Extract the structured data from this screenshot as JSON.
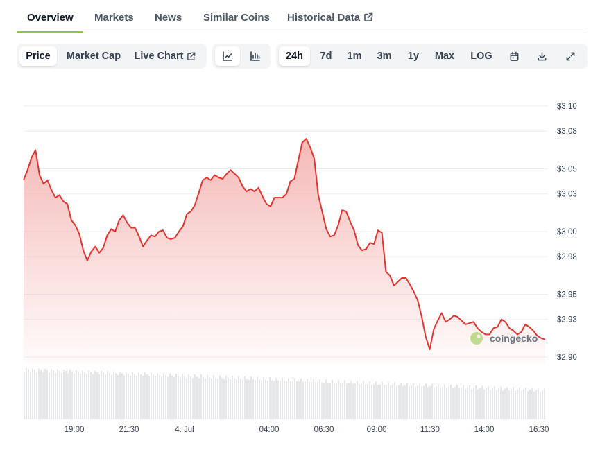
{
  "nav": {
    "tabs": [
      {
        "label": "Overview",
        "active": true
      },
      {
        "label": "Markets"
      },
      {
        "label": "News"
      },
      {
        "label": "Similar Coins"
      },
      {
        "label": "Historical Data",
        "external": true
      }
    ]
  },
  "toolbar": {
    "metric_tabs": [
      {
        "label": "Price",
        "active": true
      },
      {
        "label": "Market Cap"
      },
      {
        "label": "Live Chart",
        "external": true
      }
    ],
    "chart_type_icons": [
      {
        "icon": "line-chart-icon",
        "active": true
      },
      {
        "icon": "candlestick-chart-icon"
      }
    ],
    "ranges": [
      {
        "label": "24h",
        "active": true
      },
      {
        "label": "7d"
      },
      {
        "label": "1m"
      },
      {
        "label": "3m"
      },
      {
        "label": "1y"
      },
      {
        "label": "Max"
      },
      {
        "label": "LOG"
      }
    ],
    "action_icons": [
      "calendar-icon",
      "download-icon",
      "expand-icon"
    ]
  },
  "watermark": "coingecko",
  "colors": {
    "accent": "#8dc63f",
    "line": "#e5322d",
    "area_top": "#f4b6b3",
    "volume": "#e5e7eb"
  },
  "chart_data": {
    "type": "area",
    "ylim": [
      2.9,
      3.1
    ],
    "y_ticks": [
      2.9,
      2.93,
      2.95,
      2.98,
      3.0,
      3.03,
      3.05,
      3.08,
      3.1
    ],
    "y_tick_labels": [
      "$2.90",
      "$2.93",
      "$2.95",
      "$2.98",
      "$3.00",
      "$3.03",
      "$3.05",
      "$3.08",
      "$3.10"
    ],
    "x_ticks": [
      "19:00",
      "21:30",
      "4. Jul",
      "04:00",
      "06:30",
      "09:00",
      "11:30",
      "14:00",
      "16:30"
    ],
    "grid": true,
    "series": [
      {
        "values": [
          3.041,
          3.049,
          3.059,
          3.065,
          3.045,
          3.038,
          3.041,
          3.033,
          3.027,
          3.029,
          3.024,
          3.022,
          3.009,
          3.005,
          2.998,
          2.985,
          2.977,
          2.984,
          2.988,
          2.983,
          2.987,
          2.997,
          3.002,
          3.0,
          3.009,
          3.013,
          3.007,
          3.003,
          3.003,
          2.996,
          2.988,
          2.993,
          2.997,
          2.996,
          3.0,
          3.001,
          2.995,
          2.994,
          2.995,
          3.0,
          3.004,
          3.014,
          3.016,
          3.021,
          3.031,
          3.041,
          3.043,
          3.041,
          3.045,
          3.043,
          3.042,
          3.046,
          3.049,
          3.046,
          3.043,
          3.036,
          3.032,
          3.034,
          3.032,
          3.035,
          3.028,
          3.022,
          3.02,
          3.027,
          3.027,
          3.027,
          3.03,
          3.04,
          3.042,
          3.057,
          3.071,
          3.074,
          3.067,
          3.058,
          3.029,
          3.016,
          3.002,
          2.996,
          2.997,
          3.005,
          3.017,
          3.016,
          3.008,
          3.001,
          2.989,
          2.985,
          2.986,
          2.991,
          2.99,
          3.001,
          2.999,
          2.968,
          2.965,
          2.957,
          2.96,
          2.963,
          2.963,
          2.958,
          2.952,
          2.945,
          2.932,
          2.916,
          2.906,
          2.922,
          2.929,
          2.935,
          2.928,
          2.93,
          2.933,
          2.932,
          2.929,
          2.926,
          2.927,
          2.928,
          2.923,
          2.92,
          2.918,
          2.918,
          2.923,
          2.924,
          2.93,
          2.928,
          2.923,
          2.921,
          2.918,
          2.92,
          2.926,
          2.924,
          2.921,
          2.917,
          2.915,
          2.914
        ]
      }
    ]
  }
}
